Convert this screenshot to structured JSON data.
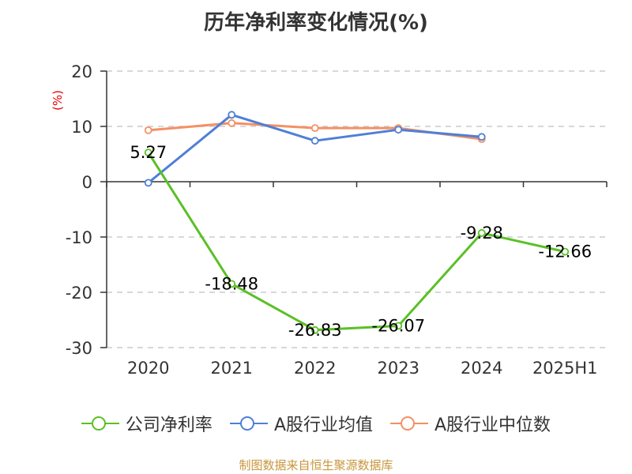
{
  "chart_data": {
    "type": "line",
    "title": "历年净利率变化情况(%)",
    "ylabel": "(%)",
    "xlabel": "",
    "categories": [
      "2020",
      "2021",
      "2022",
      "2023",
      "2024",
      "2025H1"
    ],
    "ylim": [
      -30,
      20
    ],
    "yticks": [
      20,
      10,
      0,
      -10,
      -20,
      -30
    ],
    "grid": true,
    "legend_position": "bottom",
    "series": [
      {
        "name": "公司净利率",
        "color": "#5ac026",
        "values": [
          5.27,
          -18.48,
          -26.83,
          -26.07,
          -9.28,
          -12.66
        ],
        "labels": [
          "5.27",
          "-18.48",
          "-26.83",
          "-26.07",
          "-9.28",
          "-12.66"
        ]
      },
      {
        "name": "A股行业均值",
        "color": "#4f7fd6",
        "values": [
          -0.2,
          12.1,
          7.4,
          9.4,
          8.1,
          null
        ]
      },
      {
        "name": "A股行业中位数",
        "color": "#f39065",
        "values": [
          9.3,
          10.6,
          9.7,
          9.7,
          7.7,
          null
        ]
      }
    ]
  },
  "source": "制图数据来自恒生聚源数据库"
}
